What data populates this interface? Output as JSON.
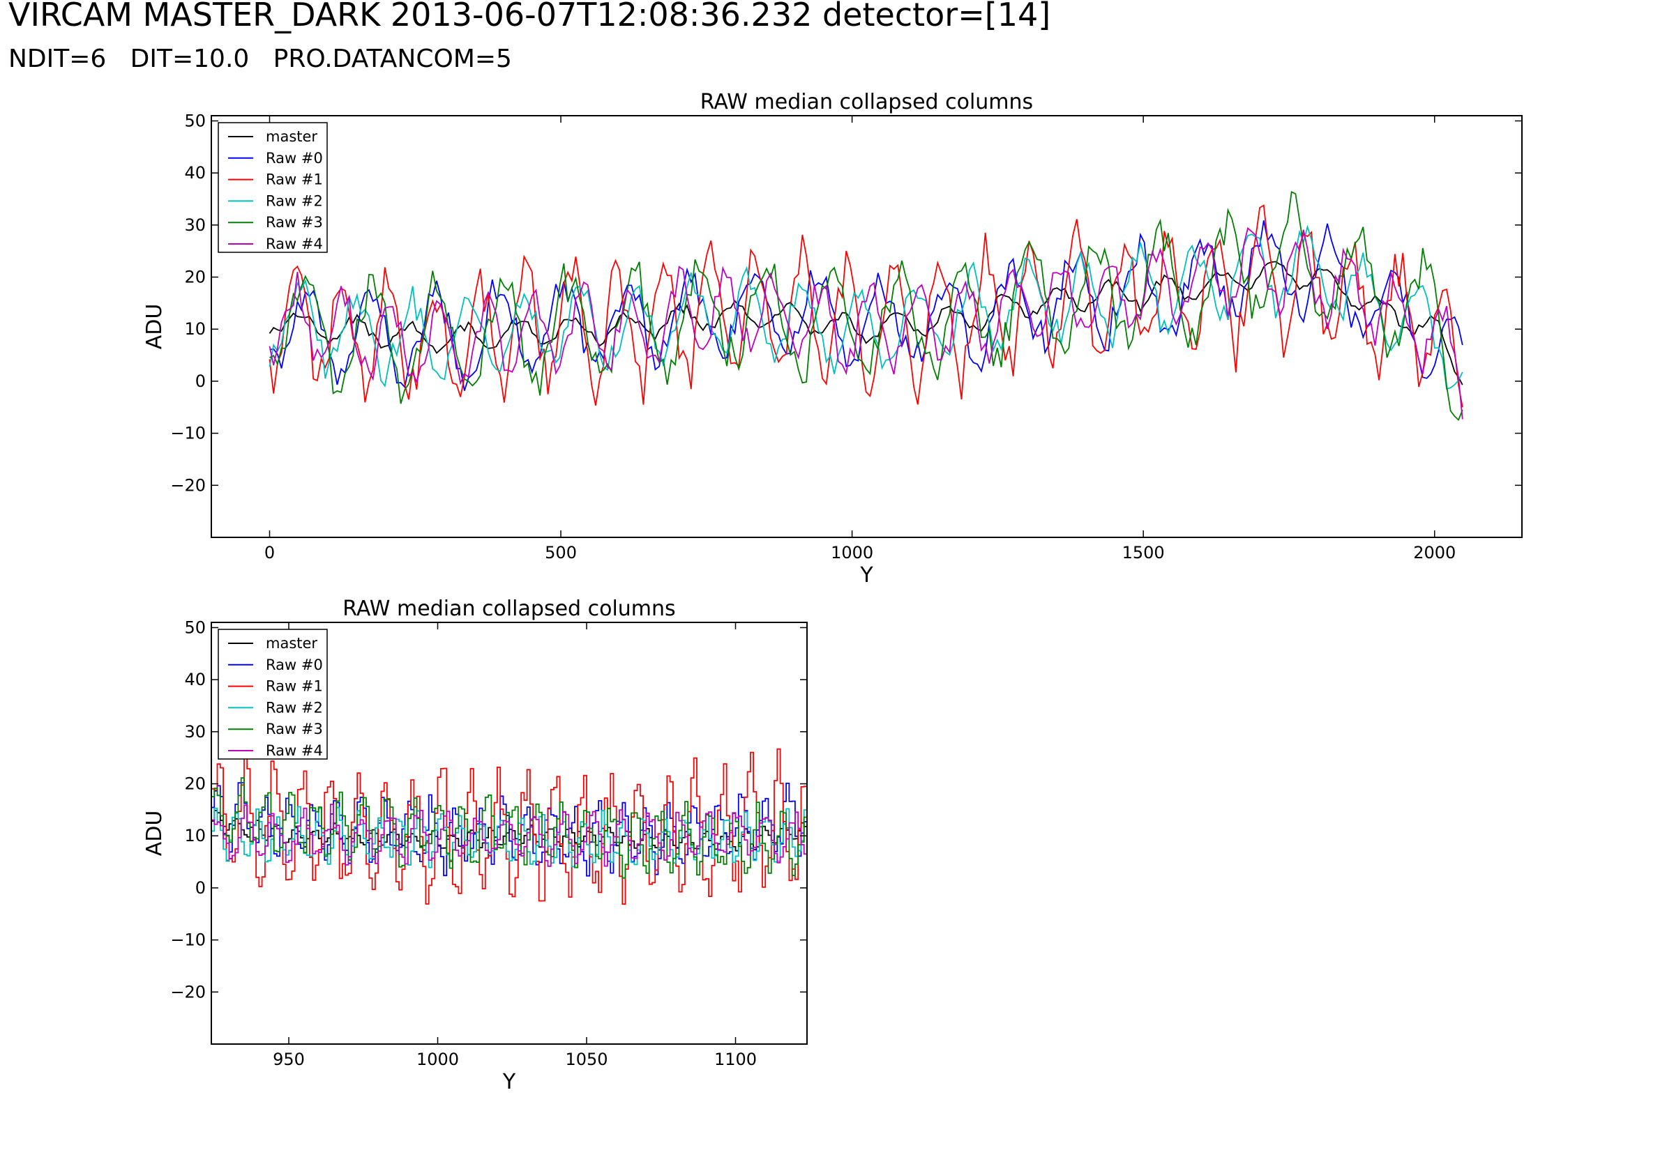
{
  "header": {
    "title": "VIRCAM MASTER_DARK 2013-06-07T12:08:36.232 detector=[14]",
    "subtitle": "NDIT=6   DIT=10.0   PRO.DATANCOM=5"
  },
  "chart_data": [
    {
      "type": "line",
      "title": "RAW median collapsed columns",
      "xlabel": "Y",
      "ylabel": "ADU",
      "xlim": [
        -100,
        2150
      ],
      "ylim": [
        -30,
        51
      ],
      "xticks": [
        0,
        500,
        1000,
        1500,
        2000
      ],
      "yticks": [
        -20,
        -10,
        0,
        10,
        20,
        30,
        40,
        50
      ],
      "legend_placement": "top-left",
      "grid": false,
      "y_start": 0,
      "y_end": 2048,
      "colors": {
        "master": "#000000",
        "Raw #0": "#0000ff",
        "Raw #1": "#ff0000",
        "Raw #2": "#00bfbf",
        "Raw #3": "#008000",
        "Raw #4": "#bf00bf"
      },
      "series": [
        {
          "name": "master",
          "color": "#000000",
          "y": [
            0,
            100,
            200,
            300,
            400,
            500,
            600,
            700,
            800,
            900,
            1000,
            1100,
            1200,
            1300,
            1400,
            1500,
            1600,
            1700,
            1800,
            1900,
            2000,
            2048
          ],
          "adu": [
            12,
            10,
            9,
            8,
            9,
            10,
            10,
            12,
            13,
            12,
            10,
            11,
            12,
            15,
            16,
            17,
            18,
            21,
            20,
            14,
            10,
            1
          ],
          "amplitude": 3
        },
        {
          "name": "Raw #0",
          "color": "#0000ff",
          "y": [
            0,
            100,
            200,
            300,
            400,
            500,
            600,
            700,
            800,
            900,
            1000,
            1100,
            1200,
            1300,
            1400,
            1500,
            1600,
            1700,
            1800,
            1900,
            2000,
            2048
          ],
          "adu": [
            12,
            10,
            9,
            8,
            10,
            11,
            10,
            12,
            14,
            13,
            11,
            11,
            12,
            15,
            16,
            17,
            18,
            22,
            21,
            15,
            10,
            1
          ],
          "amplitude": 10
        },
        {
          "name": "Raw #1",
          "color": "#ff0000",
          "y": [
            0,
            100,
            200,
            300,
            400,
            500,
            600,
            700,
            800,
            900,
            1000,
            1100,
            1200,
            1300,
            1400,
            1500,
            1600,
            1700,
            1800,
            1900,
            2000,
            2048
          ],
          "adu": [
            12,
            10,
            9,
            8,
            10,
            11,
            10,
            12,
            14,
            13,
            11,
            11,
            12,
            15,
            16,
            17,
            16,
            20,
            18,
            14,
            10,
            1
          ],
          "amplitude": 14
        },
        {
          "name": "Raw #2",
          "color": "#00bfbf",
          "y": [
            0,
            100,
            200,
            300,
            400,
            500,
            600,
            700,
            800,
            900,
            1000,
            1100,
            1200,
            1300,
            1400,
            1500,
            1600,
            1700,
            1800,
            1900,
            2000,
            2048
          ],
          "adu": [
            12,
            10,
            9,
            8,
            9,
            10,
            10,
            12,
            13,
            12,
            10,
            11,
            12,
            15,
            16,
            18,
            19,
            22,
            21,
            15,
            10,
            1
          ],
          "amplitude": 9
        },
        {
          "name": "Raw #3",
          "color": "#008000",
          "y": [
            0,
            100,
            200,
            300,
            400,
            500,
            600,
            700,
            800,
            900,
            1000,
            1100,
            1200,
            1300,
            1400,
            1500,
            1600,
            1700,
            1800,
            1900,
            2000,
            2048
          ],
          "adu": [
            12,
            10,
            9,
            8,
            9,
            10,
            10,
            12,
            13,
            12,
            10,
            11,
            12,
            15,
            16,
            18,
            19,
            23,
            22,
            17,
            11,
            1
          ],
          "amplitude": 12
        },
        {
          "name": "Raw #4",
          "color": "#bf00bf",
          "y": [
            0,
            100,
            200,
            300,
            400,
            500,
            600,
            700,
            800,
            900,
            1000,
            1100,
            1200,
            1300,
            1400,
            1500,
            1600,
            1700,
            1800,
            1900,
            2000,
            2048
          ],
          "adu": [
            12,
            10,
            8,
            7,
            9,
            10,
            10,
            12,
            14,
            12,
            10,
            11,
            12,
            15,
            16,
            18,
            19,
            22,
            20,
            15,
            10,
            1
          ],
          "amplitude": 9
        }
      ]
    },
    {
      "type": "line",
      "title": "RAW median collapsed columns",
      "xlabel": "Y",
      "ylabel": "ADU",
      "xlim": [
        924,
        1124
      ],
      "ylim": [
        -30,
        51
      ],
      "xticks": [
        950,
        1000,
        1050,
        1100
      ],
      "yticks": [
        -20,
        -10,
        0,
        10,
        20,
        30,
        40,
        50
      ],
      "legend_placement": "top-left",
      "grid": false,
      "y_start": 924,
      "y_end": 1124,
      "series": [
        {
          "name": "master",
          "color": "#000000",
          "y": [
            924,
            950,
            975,
            1000,
            1025,
            1050,
            1075,
            1100,
            1124
          ],
          "adu": [
            13,
            10,
            10,
            9,
            10,
            10,
            9,
            9,
            11
          ],
          "amplitude": 2
        },
        {
          "name": "Raw #0",
          "color": "#0000ff",
          "y": [
            924,
            950,
            975,
            1000,
            1025,
            1050,
            1075,
            1100,
            1124
          ],
          "adu": [
            14,
            12,
            11,
            10,
            10,
            10,
            10,
            11,
            14
          ],
          "amplitude": 7
        },
        {
          "name": "Raw #1",
          "color": "#ff0000",
          "y": [
            924,
            950,
            975,
            1000,
            1025,
            1050,
            1075,
            1100,
            1124
          ],
          "adu": [
            14,
            11,
            10,
            10,
            10,
            10,
            10,
            11,
            12
          ],
          "amplitude": 13
        },
        {
          "name": "Raw #2",
          "color": "#00bfbf",
          "y": [
            924,
            950,
            975,
            1000,
            1025,
            1050,
            1075,
            1100,
            1124
          ],
          "adu": [
            10,
            10,
            10,
            10,
            9,
            9,
            9,
            9,
            10
          ],
          "amplitude": 5
        },
        {
          "name": "Raw #3",
          "color": "#008000",
          "y": [
            924,
            950,
            975,
            1000,
            1025,
            1050,
            1075,
            1100,
            1124
          ],
          "adu": [
            14,
            12,
            12,
            11,
            11,
            10,
            9,
            9,
            9
          ],
          "amplitude": 7
        },
        {
          "name": "Raw #4",
          "color": "#bf00bf",
          "y": [
            924,
            950,
            975,
            1000,
            1025,
            1050,
            1075,
            1100,
            1124
          ],
          "adu": [
            10,
            10,
            10,
            10,
            10,
            10,
            10,
            10,
            10
          ],
          "amplitude": 5
        }
      ]
    }
  ]
}
